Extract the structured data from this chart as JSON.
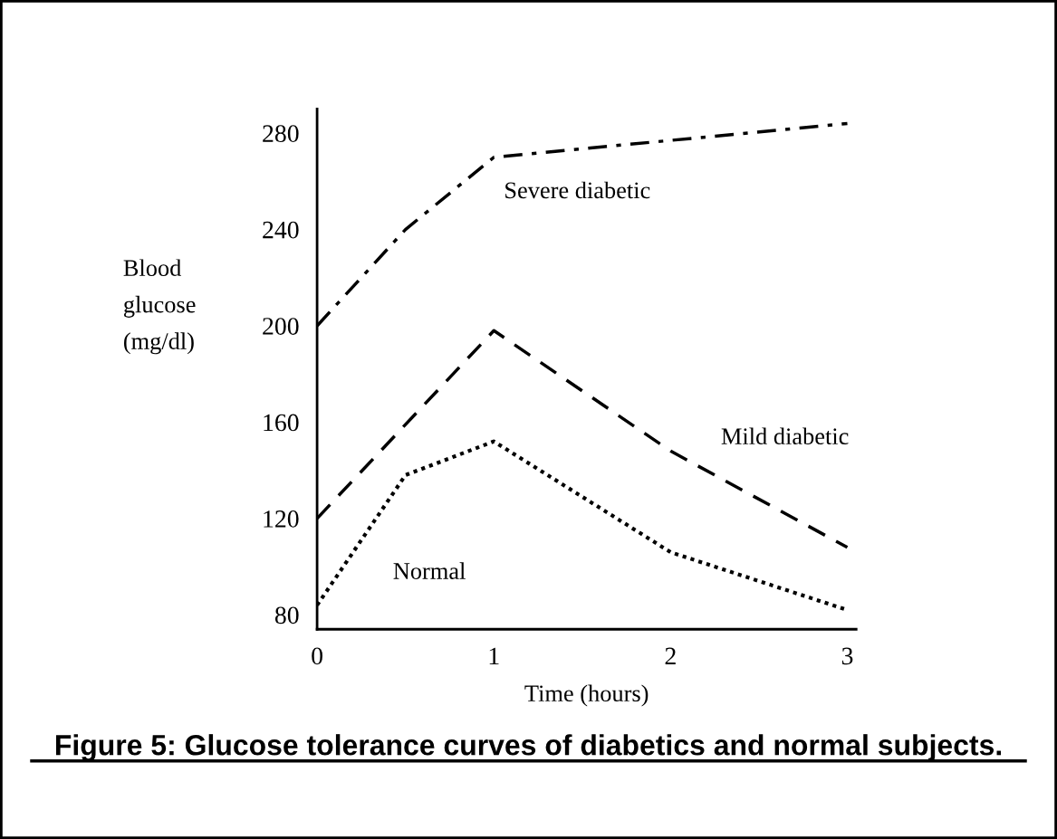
{
  "chart_data": {
    "type": "line",
    "title": "Figure 5: Glucose tolerance curves of diabetics and normal subjects.",
    "xlabel": "Time (hours)",
    "ylabel": "Blood\nglucose\n(mg/dl)",
    "xlim": [
      0,
      3.05
    ],
    "xticks": [
      0,
      1,
      2,
      3
    ],
    "ylim": [
      74,
      290
    ],
    "yticks": [
      80,
      120,
      160,
      200,
      240,
      280
    ],
    "grid": false,
    "legend": false,
    "marker": "none",
    "series": [
      {
        "name": "Severe diabetic",
        "color": "#000000",
        "line_style": "dashdot",
        "x": [
          0,
          0.5,
          1,
          3
        ],
        "values": [
          200,
          240,
          270,
          284
        ]
      },
      {
        "name": "Mild diabetic",
        "color": "#000000",
        "line_style": "dashed",
        "x": [
          0,
          1,
          2,
          3
        ],
        "values": [
          120,
          198,
          148,
          108
        ]
      },
      {
        "name": "Normal",
        "color": "#000000",
        "line_style": "dotted",
        "x": [
          0,
          0.5,
          1,
          2,
          3
        ],
        "values": [
          84,
          138,
          152,
          106,
          82
        ]
      }
    ]
  }
}
